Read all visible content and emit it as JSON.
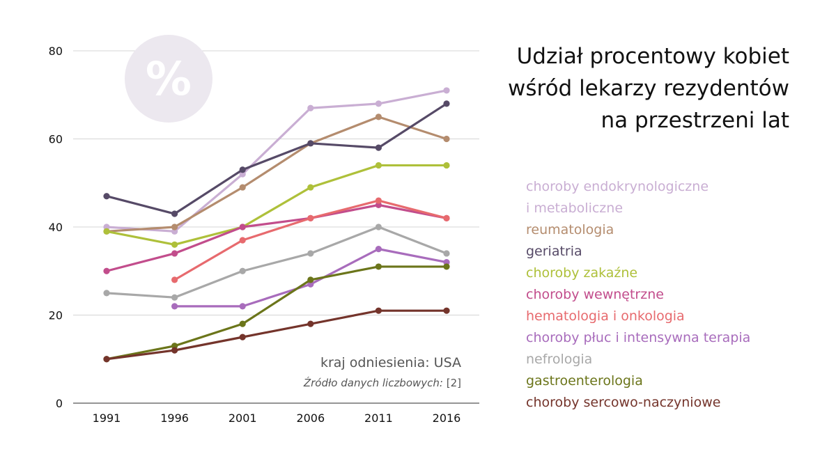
{
  "title_lines": [
    "Udział procentowy kobiet",
    "wśród lekarzy rezydentów",
    "na przestrzeni lat"
  ],
  "badge": {
    "symbol": "%",
    "icon": "percent-icon",
    "color": "#ece8ef",
    "text_color": "#ffffff"
  },
  "note": {
    "country": "kraj odniesienia: USA",
    "source_label": "Źródło danych liczbowych:",
    "source_ref": "[2]"
  },
  "legend": [
    {
      "label": "choroby endokrynologiczne",
      "color": "#c9aed3"
    },
    {
      "label": "i metaboliczne",
      "color": "#c9aed3"
    },
    {
      "label": "reumatologia",
      "color": "#b48c6e"
    },
    {
      "label": "geriatria",
      "color": "#564a67"
    },
    {
      "label": "choroby zakaźne",
      "color": "#aec03a"
    },
    {
      "label": "choroby wewnętrzne",
      "color": "#c24d8c"
    },
    {
      "label": "hematologia i onkologia",
      "color": "#e76a6e"
    },
    {
      "label": "choroby płuc i intensywna terapia",
      "color": "#a86cbc"
    },
    {
      "label": "nefrologia",
      "color": "#a8a8a8"
    },
    {
      "label": "gastroenterologia",
      "color": "#6b751a"
    },
    {
      "label": "choroby sercowo-naczyniowe",
      "color": "#74342b"
    }
  ],
  "chart_data": {
    "type": "line",
    "x": [
      1991,
      1996,
      2001,
      2006,
      2011,
      2016
    ],
    "ylim": [
      0,
      80
    ],
    "yticks": [
      0,
      20,
      40,
      60,
      80
    ],
    "grid": true,
    "legend_placement": "right",
    "series": [
      {
        "name": "choroby endokrynologiczne i metaboliczne",
        "color": "#c9aed3",
        "values": [
          40,
          39,
          52,
          67,
          68,
          71
        ]
      },
      {
        "name": "reumatologia",
        "color": "#b48c6e",
        "values": [
          39,
          40,
          49,
          59,
          65,
          60
        ]
      },
      {
        "name": "geriatria",
        "color": "#564a67",
        "values": [
          47,
          43,
          53,
          59,
          58,
          68
        ]
      },
      {
        "name": "choroby zakaźne",
        "color": "#aec03a",
        "values": [
          39,
          36,
          40,
          49,
          54,
          54
        ]
      },
      {
        "name": "choroby wewnętrzne",
        "color": "#c24d8c",
        "values": [
          30,
          34,
          40,
          42,
          45,
          42
        ]
      },
      {
        "name": "hematologia i onkologia",
        "color": "#e76a6e",
        "values": [
          null,
          28,
          37,
          42,
          46,
          42
        ]
      },
      {
        "name": "choroby płuc i intensywna terapia",
        "color": "#a86cbc",
        "values": [
          null,
          22,
          22,
          27,
          35,
          32
        ]
      },
      {
        "name": "nefrologia",
        "color": "#a8a8a8",
        "values": [
          25,
          24,
          30,
          34,
          40,
          34
        ]
      },
      {
        "name": "gastroenterologia",
        "color": "#6b751a",
        "values": [
          10,
          13,
          18,
          28,
          31,
          31
        ]
      },
      {
        "name": "choroby sercowo-naczyniowe",
        "color": "#74342b",
        "values": [
          10,
          12,
          15,
          18,
          21,
          21
        ]
      }
    ]
  }
}
